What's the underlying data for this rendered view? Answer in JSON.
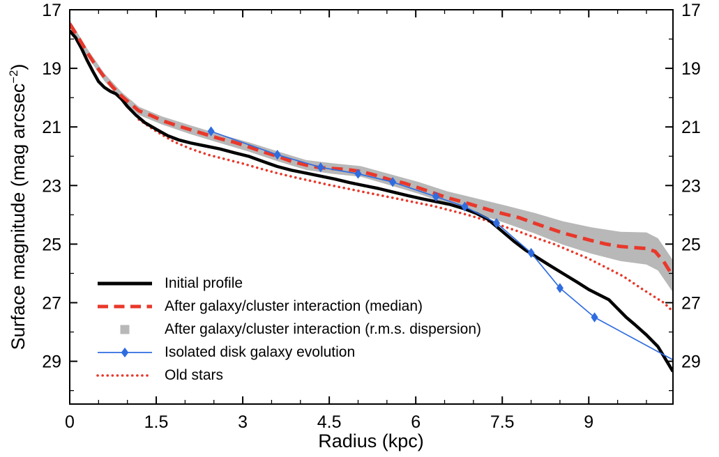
{
  "chart_data": {
    "type": "line",
    "xlabel": "Radius (kpc)",
    "ylabel_pre": "Surface magnitude (mag arcsec",
    "ylabel_sup": "−2",
    "ylabel_post": ")",
    "xlim": [
      0,
      10.46
    ],
    "ylim": [
      17,
      30.46
    ],
    "y_inverted": true,
    "grid": false,
    "legend_position": "lower-left",
    "xticks": [
      0,
      1.5,
      3,
      4.5,
      6,
      7.5,
      9
    ],
    "xtick_labels": [
      "0",
      "1.5",
      "3",
      "4.5",
      "6",
      "7.5",
      "9"
    ],
    "yticks": [
      17,
      19,
      21,
      23,
      25,
      27,
      29
    ],
    "ytick_labels": [
      "17",
      "19",
      "21",
      "23",
      "25",
      "27",
      "29"
    ],
    "xminor_step": 0.5,
    "yminor_step": 1,
    "series": [
      {
        "name": "Initial profile",
        "color": "#000000",
        "style": "solid",
        "width": 4.5,
        "points": [
          [
            0,
            17.72
          ],
          [
            0.1,
            17.95
          ],
          [
            0.2,
            18.3
          ],
          [
            0.3,
            18.72
          ],
          [
            0.4,
            19.1
          ],
          [
            0.5,
            19.45
          ],
          [
            0.6,
            19.65
          ],
          [
            0.7,
            19.78
          ],
          [
            0.8,
            19.87
          ],
          [
            0.9,
            20.05
          ],
          [
            1.0,
            20.3
          ],
          [
            1.15,
            20.6
          ],
          [
            1.3,
            20.85
          ],
          [
            1.5,
            21.08
          ],
          [
            1.7,
            21.3
          ],
          [
            1.9,
            21.45
          ],
          [
            2.1,
            21.55
          ],
          [
            2.35,
            21.65
          ],
          [
            2.6,
            21.75
          ],
          [
            2.85,
            21.88
          ],
          [
            3.1,
            22.0
          ],
          [
            3.35,
            22.18
          ],
          [
            3.6,
            22.35
          ],
          [
            3.85,
            22.48
          ],
          [
            4.1,
            22.58
          ],
          [
            4.35,
            22.68
          ],
          [
            4.6,
            22.78
          ],
          [
            4.85,
            22.9
          ],
          [
            5.1,
            23.0
          ],
          [
            5.35,
            23.1
          ],
          [
            5.6,
            23.22
          ],
          [
            5.85,
            23.34
          ],
          [
            6.1,
            23.45
          ],
          [
            6.35,
            23.55
          ],
          [
            6.6,
            23.65
          ],
          [
            6.85,
            23.8
          ],
          [
            7.05,
            23.95
          ],
          [
            7.25,
            24.15
          ],
          [
            7.4,
            24.4
          ],
          [
            7.55,
            24.65
          ],
          [
            7.7,
            24.9
          ],
          [
            7.9,
            25.2
          ],
          [
            8.1,
            25.45
          ],
          [
            8.3,
            25.7
          ],
          [
            8.55,
            26.0
          ],
          [
            8.8,
            26.3
          ],
          [
            9.0,
            26.55
          ],
          [
            9.2,
            26.75
          ],
          [
            9.35,
            26.9
          ],
          [
            9.5,
            27.2
          ],
          [
            9.65,
            27.5
          ],
          [
            9.8,
            27.75
          ],
          [
            10.0,
            28.1
          ],
          [
            10.2,
            28.5
          ],
          [
            10.46,
            29.35
          ]
        ]
      },
      {
        "name": "After galaxy/cluster interaction (median)",
        "color": "#e8382b",
        "style": "dashed",
        "dash": "16 9",
        "width": 5,
        "points": [
          [
            0,
            17.48
          ],
          [
            0.15,
            17.95
          ],
          [
            0.3,
            18.45
          ],
          [
            0.45,
            18.9
          ],
          [
            0.6,
            19.3
          ],
          [
            0.75,
            19.65
          ],
          [
            0.9,
            19.95
          ],
          [
            1.05,
            20.2
          ],
          [
            1.2,
            20.45
          ],
          [
            1.4,
            20.6
          ],
          [
            1.6,
            20.78
          ],
          [
            1.85,
            20.95
          ],
          [
            2.1,
            21.1
          ],
          [
            2.35,
            21.25
          ],
          [
            2.6,
            21.4
          ],
          [
            2.85,
            21.52
          ],
          [
            3.1,
            21.68
          ],
          [
            3.35,
            21.85
          ],
          [
            3.6,
            22.0
          ],
          [
            3.85,
            22.18
          ],
          [
            4.1,
            22.3
          ],
          [
            4.3,
            22.38
          ],
          [
            4.55,
            22.42
          ],
          [
            4.8,
            22.45
          ],
          [
            5.05,
            22.52
          ],
          [
            5.3,
            22.65
          ],
          [
            5.55,
            22.8
          ],
          [
            5.8,
            22.92
          ],
          [
            6.05,
            23.08
          ],
          [
            6.3,
            23.25
          ],
          [
            6.55,
            23.42
          ],
          [
            6.8,
            23.55
          ],
          [
            7.05,
            23.7
          ],
          [
            7.3,
            23.85
          ],
          [
            7.55,
            23.98
          ],
          [
            7.8,
            24.1
          ],
          [
            8.05,
            24.28
          ],
          [
            8.3,
            24.45
          ],
          [
            8.55,
            24.62
          ],
          [
            8.8,
            24.75
          ],
          [
            9.05,
            24.88
          ],
          [
            9.3,
            25.0
          ],
          [
            9.55,
            25.08
          ],
          [
            9.8,
            25.12
          ],
          [
            10.0,
            25.15
          ],
          [
            10.15,
            25.25
          ],
          [
            10.3,
            25.6
          ],
          [
            10.46,
            26.1
          ]
        ]
      },
      {
        "name": "After galaxy/cluster interaction (r.m.s. dispersion)",
        "color": "#b8b8b8",
        "style": "band",
        "x": [
          0,
          0.3,
          0.6,
          0.9,
          1.2,
          1.6,
          2.1,
          2.6,
          3.1,
          3.6,
          4.1,
          4.55,
          5.05,
          5.55,
          6.05,
          6.55,
          7.05,
          7.55,
          8.05,
          8.55,
          9.05,
          9.55,
          10.0,
          10.2,
          10.46
        ],
        "upper": [
          17.35,
          18.32,
          19.17,
          19.81,
          20.31,
          20.64,
          20.95,
          21.25,
          21.52,
          21.83,
          22.13,
          22.24,
          22.34,
          22.61,
          22.88,
          23.2,
          23.44,
          23.68,
          23.93,
          24.22,
          24.43,
          24.58,
          24.6,
          24.8,
          25.55
        ],
        "lower": [
          17.61,
          18.58,
          19.43,
          20.09,
          20.59,
          20.92,
          21.25,
          21.55,
          21.84,
          22.17,
          22.47,
          22.6,
          22.7,
          22.99,
          23.28,
          23.64,
          23.96,
          24.28,
          24.63,
          25.02,
          25.33,
          25.58,
          25.7,
          25.9,
          26.65
        ]
      },
      {
        "name": "Isolated disk galaxy evolution",
        "color": "#2f6ce0",
        "style": "solid",
        "width": 1.7,
        "marker": "diamond",
        "points": [
          [
            2.45,
            21.15
          ],
          [
            3.6,
            21.95
          ],
          [
            4.35,
            22.38
          ],
          [
            5.0,
            22.6
          ],
          [
            5.6,
            22.88
          ],
          [
            6.35,
            23.38
          ],
          [
            6.85,
            23.72
          ],
          [
            7.4,
            24.28
          ],
          [
            8.0,
            25.3
          ],
          [
            8.5,
            26.5
          ],
          [
            9.1,
            27.5
          ],
          [
            10.46,
            28.95
          ]
        ],
        "marker_points": [
          [
            2.45,
            21.15
          ],
          [
            3.6,
            21.95
          ],
          [
            4.35,
            22.38
          ],
          [
            5.0,
            22.6
          ],
          [
            5.6,
            22.88
          ],
          [
            6.35,
            23.38
          ],
          [
            6.85,
            23.72
          ],
          [
            7.4,
            24.28
          ],
          [
            8.0,
            25.3
          ],
          [
            8.5,
            26.5
          ],
          [
            9.1,
            27.5
          ]
        ]
      },
      {
        "name": "Old stars",
        "color": "#e8382b",
        "style": "dotted",
        "dash": "0.1 7",
        "width": 3.6,
        "points": [
          [
            1.2,
            20.75
          ],
          [
            1.5,
            21.15
          ],
          [
            1.8,
            21.5
          ],
          [
            2.1,
            21.75
          ],
          [
            2.4,
            21.95
          ],
          [
            2.7,
            22.1
          ],
          [
            3.0,
            22.25
          ],
          [
            3.3,
            22.42
          ],
          [
            3.6,
            22.58
          ],
          [
            3.9,
            22.72
          ],
          [
            4.2,
            22.85
          ],
          [
            4.5,
            22.98
          ],
          [
            4.8,
            23.1
          ],
          [
            5.1,
            23.22
          ],
          [
            5.4,
            23.34
          ],
          [
            5.7,
            23.46
          ],
          [
            6.0,
            23.58
          ],
          [
            6.3,
            23.7
          ],
          [
            6.6,
            23.85
          ],
          [
            6.9,
            24.0
          ],
          [
            7.2,
            24.18
          ],
          [
            7.5,
            24.38
          ],
          [
            7.8,
            24.58
          ],
          [
            8.1,
            24.8
          ],
          [
            8.4,
            25.0
          ],
          [
            8.7,
            25.25
          ],
          [
            9.0,
            25.5
          ],
          [
            9.3,
            25.8
          ],
          [
            9.6,
            26.1
          ],
          [
            9.9,
            26.5
          ],
          [
            10.1,
            26.75
          ],
          [
            10.3,
            27.0
          ],
          [
            10.46,
            27.3
          ]
        ]
      }
    ]
  }
}
